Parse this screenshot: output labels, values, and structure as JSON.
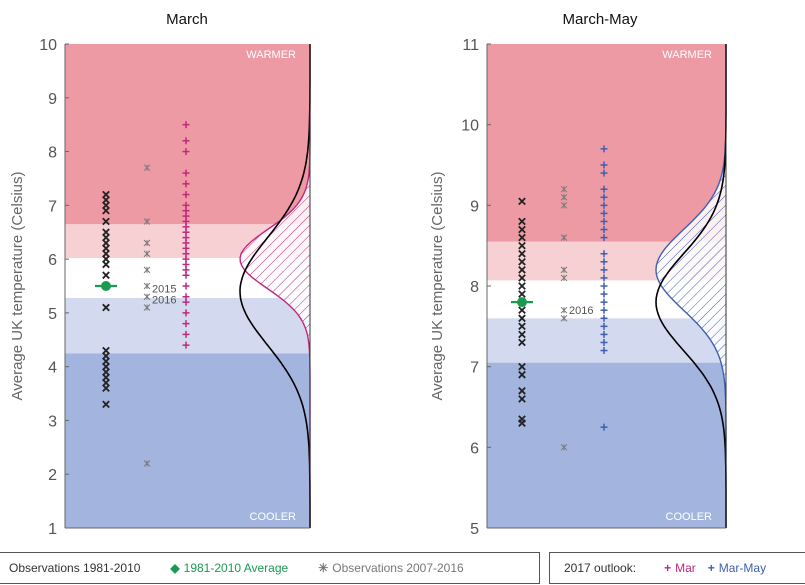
{
  "chart_data": [
    {
      "type": "scatter",
      "title": "March",
      "ylabel": "Average UK temperature (Celsius)",
      "ylim": [
        1,
        10
      ],
      "yticks": [
        1,
        2,
        3,
        4,
        5,
        6,
        7,
        8,
        9,
        10
      ],
      "bands": [
        {
          "from": 1,
          "to": 4.25,
          "color": "#a3b4de"
        },
        {
          "from": 4.25,
          "to": 5.28,
          "color": "#d3d9ee"
        },
        {
          "from": 5.28,
          "to": 6.02,
          "color": "#ffffff"
        },
        {
          "from": 6.02,
          "to": 6.65,
          "color": "#f7d0d4"
        },
        {
          "from": 6.65,
          "to": 10,
          "color": "#ee9aa4"
        }
      ],
      "labels": {
        "top": "WARMER",
        "bottom": "COOLER"
      },
      "observations_1981_2010": [
        3.3,
        3.6,
        3.7,
        3.8,
        3.9,
        4.0,
        4.1,
        4.2,
        4.3,
        5.1,
        5.5,
        5.7,
        5.9,
        6.0,
        6.1,
        6.2,
        6.3,
        6.4,
        6.5,
        6.7,
        6.9,
        7.0,
        7.1,
        7.2
      ],
      "average_1981_2010": 5.5,
      "observations_2007_2016": [
        2.2,
        5.1,
        5.3,
        5.5,
        5.8,
        6.1,
        6.3,
        6.7,
        7.7
      ],
      "observation_labels": [
        {
          "text": "2015",
          "y": 5.45
        },
        {
          "text": "2016",
          "y": 5.25
        }
      ],
      "outlook": {
        "name": "Mar",
        "values": [
          4.4,
          4.6,
          4.8,
          5.0,
          5.2,
          5.3,
          5.5,
          5.7,
          5.8,
          5.9,
          6.0,
          6.1,
          6.2,
          6.3,
          6.4,
          6.5,
          6.6,
          6.7,
          6.8,
          6.9,
          7.0,
          7.2,
          7.4,
          7.6,
          8.0,
          8.2,
          8.5
        ]
      },
      "dist_obs": {
        "mean": 5.4,
        "sd": 1.0
      },
      "dist_outlook": {
        "mean": 6.0,
        "sd": 0.55
      }
    },
    {
      "type": "scatter",
      "title": "March-May",
      "ylabel": "Average UK temperature (Celsius)",
      "ylim": [
        5,
        11
      ],
      "yticks": [
        5,
        6,
        7,
        8,
        9,
        10,
        11
      ],
      "bands": [
        {
          "from": 5,
          "to": 7.05,
          "color": "#a3b4de"
        },
        {
          "from": 7.05,
          "to": 7.6,
          "color": "#d3d9ee"
        },
        {
          "from": 7.6,
          "to": 8.07,
          "color": "#ffffff"
        },
        {
          "from": 8.07,
          "to": 8.55,
          "color": "#f7d0d4"
        },
        {
          "from": 8.55,
          "to": 11,
          "color": "#ee9aa4"
        }
      ],
      "labels": {
        "top": "WARMER",
        "bottom": "COOLER"
      },
      "observations_1981_2010": [
        6.3,
        6.35,
        6.6,
        6.7,
        6.9,
        7.0,
        7.3,
        7.4,
        7.5,
        7.6,
        7.7,
        7.8,
        7.9,
        8.0,
        8.1,
        8.2,
        8.3,
        8.4,
        8.5,
        8.6,
        8.7,
        8.8,
        9.05
      ],
      "average_1981_2010": 7.8,
      "observations_2007_2016": [
        6.0,
        7.6,
        7.7,
        8.1,
        8.2,
        8.6,
        9.0,
        9.1,
        9.2
      ],
      "observation_labels": [
        {
          "text": "2016",
          "y": 7.7
        }
      ],
      "outlook": {
        "name": "Mar-May",
        "values": [
          6.25,
          7.2,
          7.3,
          7.4,
          7.5,
          7.6,
          7.7,
          7.8,
          7.9,
          8.0,
          8.1,
          8.2,
          8.3,
          8.4,
          8.6,
          8.7,
          8.8,
          8.9,
          9.0,
          9.1,
          9.2,
          9.4,
          9.5,
          9.7
        ]
      },
      "dist_obs": {
        "mean": 7.8,
        "sd": 0.6
      },
      "dist_outlook": {
        "mean": 8.2,
        "sd": 0.5
      }
    }
  ],
  "legend": {
    "obs_1981_2010": "Observations 1981-2010",
    "average": "1981-2010 Average",
    "obs_2007_2016": "Observations 2007-2016",
    "outlook_label": "2017 outlook:",
    "mar": "Mar",
    "mar_may": "Mar-May"
  },
  "colors": {
    "obs": "#222222",
    "average": "#1a9a50",
    "recent": "#7a7a7a",
    "mar": "#c0287f",
    "mar_may": "#3f5fb0"
  }
}
